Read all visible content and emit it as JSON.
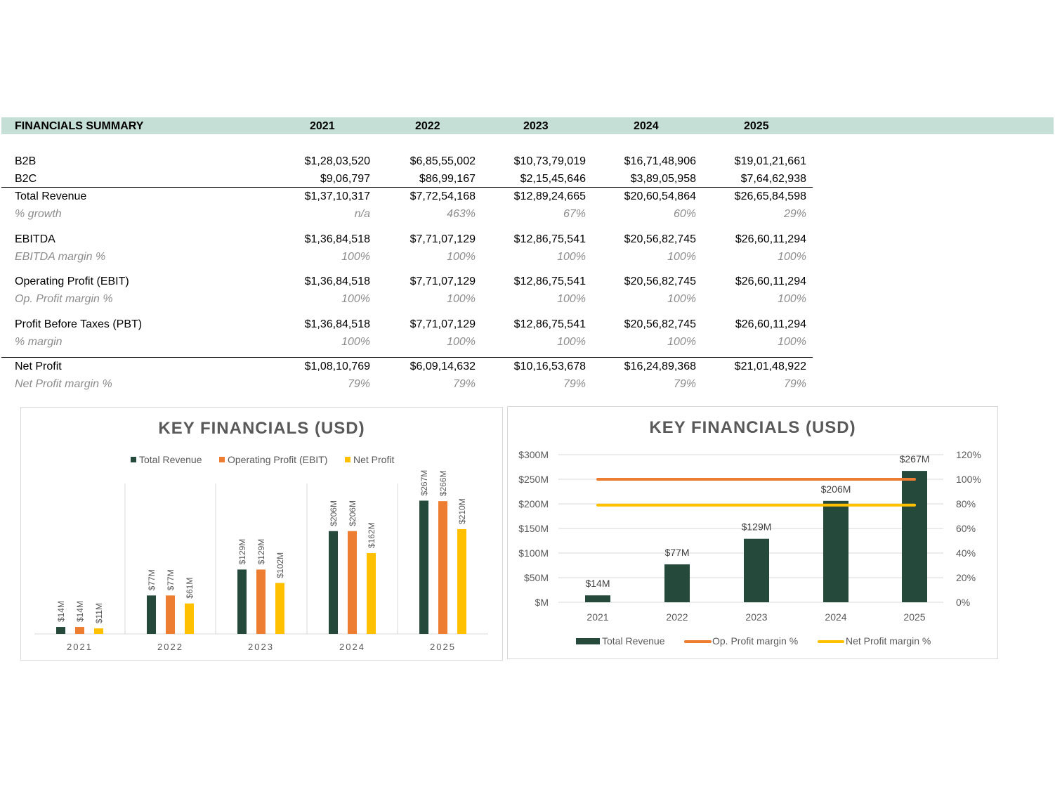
{
  "table": {
    "title": "FINANCIALS SUMMARY",
    "years": [
      "2021",
      "2022",
      "2023",
      "2024",
      "2025"
    ],
    "rows": [
      {
        "label": "B2B",
        "values": [
          "$1,28,03,520",
          "$6,85,55,002",
          "$10,73,79,019",
          "$16,71,48,906",
          "$19,01,21,661"
        ],
        "sub": false
      },
      {
        "label": "B2C",
        "values": [
          "$9,06,797",
          "$86,99,167",
          "$2,15,45,646",
          "$3,89,05,958",
          "$7,64,62,938"
        ],
        "sub": false
      },
      {
        "label": "Total Revenue",
        "values": [
          "$1,37,10,317",
          "$7,72,54,168",
          "$12,89,24,665",
          "$20,60,54,864",
          "$26,65,84,598"
        ],
        "sub": false
      },
      {
        "label": "% growth",
        "values": [
          "n/a",
          "463%",
          "67%",
          "60%",
          "29%"
        ],
        "sub": true
      },
      {
        "label": "EBITDA",
        "values": [
          "$1,36,84,518",
          "$7,71,07,129",
          "$12,86,75,541",
          "$20,56,82,745",
          "$26,60,11,294"
        ],
        "sub": false
      },
      {
        "label": "EBITDA margin %",
        "values": [
          "100%",
          "100%",
          "100%",
          "100%",
          "100%"
        ],
        "sub": true
      },
      {
        "label": "Operating Profit (EBIT)",
        "values": [
          "$1,36,84,518",
          "$7,71,07,129",
          "$12,86,75,541",
          "$20,56,82,745",
          "$26,60,11,294"
        ],
        "sub": false
      },
      {
        "label": "Op. Profit margin %",
        "values": [
          "100%",
          "100%",
          "100%",
          "100%",
          "100%"
        ],
        "sub": true
      },
      {
        "label": "Profit Before Taxes (PBT)",
        "values": [
          "$1,36,84,518",
          "$7,71,07,129",
          "$12,86,75,541",
          "$20,56,82,745",
          "$26,60,11,294"
        ],
        "sub": false
      },
      {
        "label": "% margin",
        "values": [
          "100%",
          "100%",
          "100%",
          "100%",
          "100%"
        ],
        "sub": true
      },
      {
        "label": "Net Profit",
        "values": [
          "$1,08,10,769",
          "$6,09,14,632",
          "$10,16,53,678",
          "$16,24,89,368",
          "$21,01,48,922"
        ],
        "sub": false
      },
      {
        "label": "Net Profit margin %",
        "values": [
          "79%",
          "79%",
          "79%",
          "79%",
          "79%"
        ],
        "sub": true
      }
    ]
  },
  "colors": {
    "header_band": "#c5ded6",
    "revenue": "#254a3b",
    "operating": "#ed7d31",
    "net": "#ffc000",
    "sub_text": "#8c8c8c"
  },
  "chart_data": [
    {
      "type": "bar",
      "title": "KEY FINANCIALS (USD)",
      "categories": [
        "2021",
        "2022",
        "2023",
        "2024",
        "2025"
      ],
      "series": [
        {
          "name": "Total Revenue",
          "values": [
            14,
            77,
            129,
            206,
            267
          ],
          "labels": [
            "$14M",
            "$77M",
            "$129M",
            "$206M",
            "$267M"
          ]
        },
        {
          "name": "Operating Profit (EBIT)",
          "values": [
            14,
            77,
            129,
            206,
            266
          ],
          "labels": [
            "$14M",
            "$77M",
            "$129M",
            "$206M",
            "$266M"
          ]
        },
        {
          "name": "Net Profit",
          "values": [
            11,
            61,
            102,
            162,
            210
          ],
          "labels": [
            "$11M",
            "$61M",
            "$102M",
            "$162M",
            "$210M"
          ]
        }
      ],
      "ylim": [
        0,
        300
      ],
      "legend": "top",
      "grid": false
    },
    {
      "type": "bar",
      "title": "KEY FINANCIALS (USD)",
      "categories": [
        "2021",
        "2022",
        "2023",
        "2024",
        "2025"
      ],
      "series": [
        {
          "name": "Total Revenue",
          "type": "bar",
          "values": [
            14,
            77,
            129,
            206,
            267
          ],
          "labels": [
            "$14M",
            "$77M",
            "$129M",
            "$206M",
            "$267M"
          ]
        },
        {
          "name": "Op. Profit margin %",
          "type": "line",
          "axis": "right",
          "values": [
            100,
            100,
            100,
            100,
            100
          ]
        },
        {
          "name": "Net Profit margin %",
          "type": "line",
          "axis": "right",
          "values": [
            79,
            79,
            79,
            79,
            79
          ]
        }
      ],
      "ylim": [
        0,
        300
      ],
      "yticks": [
        "$M",
        "$50M",
        "$100M",
        "$150M",
        "$200M",
        "$250M",
        "$300M"
      ],
      "y2lim": [
        0,
        120
      ],
      "y2ticks": [
        "0%",
        "20%",
        "40%",
        "60%",
        "80%",
        "100%",
        "120%"
      ],
      "legend": "bottom",
      "grid": true
    }
  ]
}
